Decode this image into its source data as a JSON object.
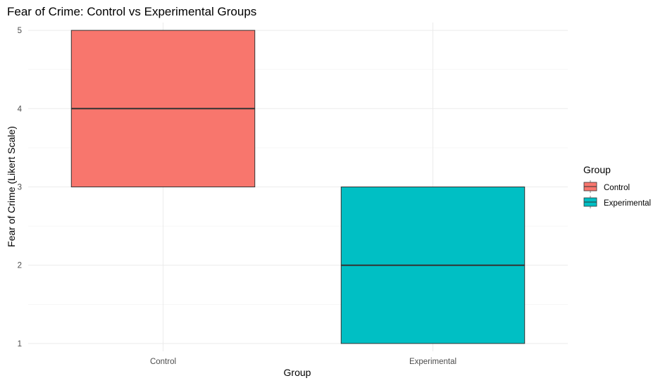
{
  "chart_data": {
    "type": "box",
    "title": "Fear of Crime: Control vs Experimental Groups",
    "xlabel": "Group",
    "ylabel": "Fear of Crime (Likert Scale)",
    "categories": [
      "Control",
      "Experimental"
    ],
    "ylim": [
      0.9,
      5.1
    ],
    "yticks": [
      1,
      2,
      3,
      4,
      5
    ],
    "grid": true,
    "series": [
      {
        "name": "Control",
        "color": "#F8766D",
        "min": 3,
        "q1": 3,
        "median": 4,
        "q3": 5,
        "max": 5
      },
      {
        "name": "Experimental",
        "color": "#00BFC4",
        "min": 1,
        "q1": 1,
        "median": 2,
        "q3": 3,
        "max": 3
      }
    ],
    "legend": {
      "title": "Group",
      "position": "right"
    }
  }
}
